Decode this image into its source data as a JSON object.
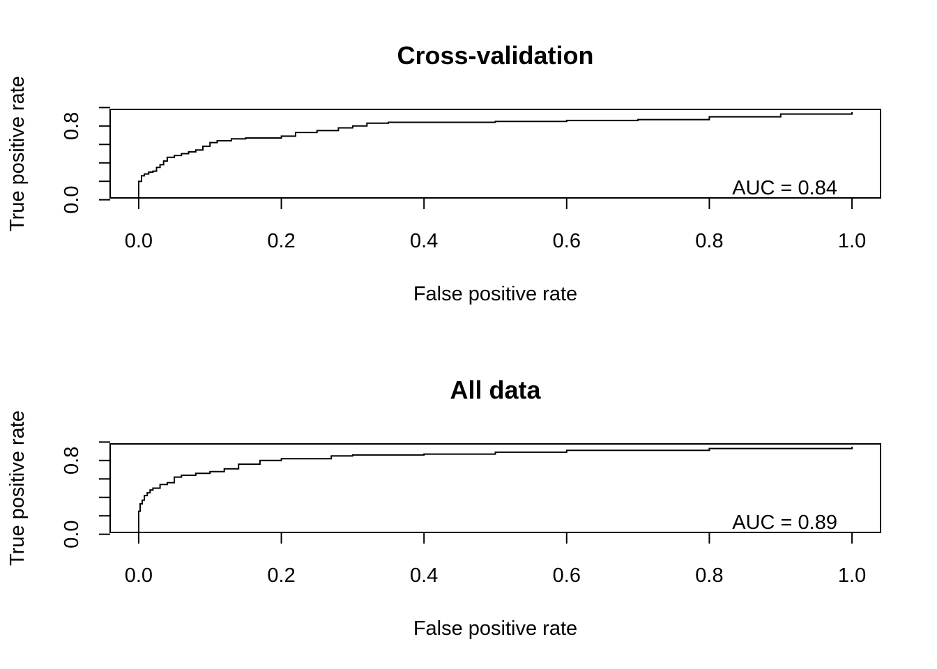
{
  "chart_data": [
    {
      "type": "line",
      "title": "Cross-validation",
      "xlabel": "False positive rate",
      "ylabel": "True positive rate",
      "xlim": [
        0,
        1
      ],
      "ylim": [
        0.02,
        0.98
      ],
      "x_ticks": [
        "0.0",
        "0.2",
        "0.4",
        "0.6",
        "0.8",
        "1.0"
      ],
      "y_ticks": [
        0,
        0.2,
        0.4,
        0.6,
        0.8,
        1.0
      ],
      "y_tick_labels": [
        "0.0",
        "",
        "",
        "",
        "0.8",
        ""
      ],
      "annotation": "AUC = 0.84",
      "grid": false,
      "series": [
        {
          "x": [
            0,
            0,
            0.004,
            0.008,
            0.014,
            0.02,
            0.025,
            0.03,
            0.035,
            0.04,
            0.05,
            0.06,
            0.07,
            0.08,
            0.09,
            0.1,
            0.11,
            0.13,
            0.15,
            0.2,
            0.22,
            0.25,
            0.28,
            0.3,
            0.32,
            0.35,
            0.4,
            0.5,
            0.6,
            0.7,
            0.8,
            0.9,
            1.0
          ],
          "y": [
            0,
            0.2,
            0.26,
            0.28,
            0.3,
            0.31,
            0.35,
            0.38,
            0.42,
            0.46,
            0.48,
            0.5,
            0.52,
            0.54,
            0.58,
            0.62,
            0.64,
            0.66,
            0.67,
            0.69,
            0.73,
            0.75,
            0.78,
            0.8,
            0.83,
            0.84,
            0.84,
            0.85,
            0.86,
            0.87,
            0.9,
            0.93,
            0.95
          ]
        }
      ]
    },
    {
      "type": "line",
      "title": "All data",
      "xlabel": "False positive rate",
      "ylabel": "True positive rate",
      "xlim": [
        0,
        1
      ],
      "ylim": [
        0.02,
        0.98
      ],
      "x_ticks": [
        "0.0",
        "0.2",
        "0.4",
        "0.6",
        "0.8",
        "1.0"
      ],
      "y_ticks": [
        0,
        0.2,
        0.4,
        0.6,
        0.8,
        1.0
      ],
      "y_tick_labels": [
        "0.0",
        "",
        "",
        "",
        "0.8",
        ""
      ],
      "annotation": "AUC = 0.89",
      "grid": false,
      "series": [
        {
          "x": [
            0,
            0,
            0.002,
            0.005,
            0.008,
            0.012,
            0.016,
            0.02,
            0.03,
            0.04,
            0.05,
            0.06,
            0.08,
            0.1,
            0.12,
            0.14,
            0.17,
            0.2,
            0.27,
            0.3,
            0.4,
            0.5,
            0.6,
            0.8,
            1.0
          ],
          "y": [
            0,
            0.25,
            0.33,
            0.37,
            0.42,
            0.45,
            0.48,
            0.5,
            0.54,
            0.56,
            0.62,
            0.64,
            0.66,
            0.68,
            0.71,
            0.76,
            0.8,
            0.82,
            0.85,
            0.86,
            0.87,
            0.89,
            0.91,
            0.93,
            0.95
          ]
        }
      ]
    }
  ]
}
